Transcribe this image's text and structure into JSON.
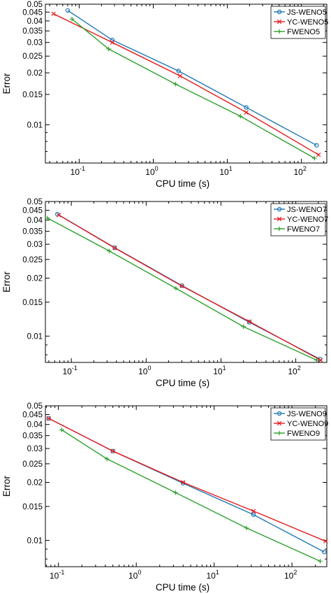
{
  "chart_data": [
    {
      "type": "line",
      "scale": "log-log",
      "xlabel": "CPU time (s)",
      "ylabel": "Error",
      "xlim": [
        0.035,
        220
      ],
      "ylim": [
        0.006,
        0.05
      ],
      "grid": false,
      "legend_position": "top-right",
      "x_ticks": [
        {
          "label": "10",
          "sup": "-1"
        },
        {
          "label": "10",
          "sup": "0"
        },
        {
          "label": "10",
          "sup": "1"
        },
        {
          "label": "10",
          "sup": "2"
        }
      ],
      "y_ticks": [
        "0.05",
        "0.045",
        "0.04",
        "0.035",
        "0.03",
        "0.025",
        "0.02",
        "0.015",
        "0.01"
      ],
      "series": [
        {
          "name": "JS-WENO5",
          "color": "#1f77b4",
          "marker": "circle",
          "x": [
            0.07,
            0.28,
            2.2,
            18,
            160
          ],
          "y": [
            0.046,
            0.031,
            0.0205,
            0.0126,
            0.0076
          ]
        },
        {
          "name": "YC-WENO5",
          "color": "#e41a1c",
          "marker": "x",
          "x": [
            0.045,
            0.28,
            2.3,
            18,
            170
          ],
          "y": [
            0.044,
            0.03,
            0.0192,
            0.0118,
            0.0067
          ]
        },
        {
          "name": "FWENO5",
          "color": "#2ca02c",
          "marker": "plus",
          "x": [
            0.08,
            0.25,
            2.0,
            15,
            150
          ],
          "y": [
            0.041,
            0.0275,
            0.0172,
            0.0112,
            0.0064
          ]
        }
      ]
    },
    {
      "type": "line",
      "scale": "log-log",
      "xlabel": "CPU time (s)",
      "ylabel": "Error",
      "xlim": [
        0.045,
        260
      ],
      "ylim": [
        0.0073,
        0.05
      ],
      "grid": false,
      "legend_position": "top-right",
      "x_ticks": [
        {
          "label": "10",
          "sup": "-1"
        },
        {
          "label": "10",
          "sup": "0"
        },
        {
          "label": "10",
          "sup": "1"
        },
        {
          "label": "10",
          "sup": "2"
        }
      ],
      "y_ticks": [
        "0.05",
        "0.045",
        "0.04",
        "0.035",
        "0.03",
        "0.025",
        "0.02",
        "0.015",
        "0.01"
      ],
      "series": [
        {
          "name": "JS-WENO7",
          "color": "#1f77b4",
          "marker": "circle",
          "x": [
            0.065,
            0.38,
            3.0,
            24,
            210
          ],
          "y": [
            0.043,
            0.0288,
            0.0183,
            0.0118,
            0.0076
          ]
        },
        {
          "name": "YC-WENO7",
          "color": "#e41a1c",
          "marker": "x",
          "x": [
            0.068,
            0.38,
            3.0,
            24,
            215
          ],
          "y": [
            0.0425,
            0.0287,
            0.0182,
            0.0119,
            0.0075
          ]
        },
        {
          "name": "FWENO7",
          "color": "#2ca02c",
          "marker": "plus",
          "x": [
            0.048,
            0.32,
            2.5,
            20,
            190
          ],
          "y": [
            0.041,
            0.0277,
            0.0177,
            0.0112,
            0.0075
          ]
        }
      ]
    },
    {
      "type": "line",
      "scale": "log-log",
      "xlabel": "CPU time (s)",
      "ylabel": "Error",
      "xlim": [
        0.068,
        280
      ],
      "ylim": [
        0.0073,
        0.05
      ],
      "grid": false,
      "legend_position": "top-right",
      "x_ticks": [
        {
          "label": "10",
          "sup": "-1"
        },
        {
          "label": "10",
          "sup": "0"
        },
        {
          "label": "10",
          "sup": "1"
        },
        {
          "label": "10",
          "sup": "2"
        }
      ],
      "y_ticks": [
        "0.05",
        "0.045",
        "0.04",
        "0.035",
        "0.03",
        "0.025",
        "0.02",
        "0.015",
        "0.01"
      ],
      "series": [
        {
          "name": "JS-WENO9",
          "color": "#1f77b4",
          "marker": "circle",
          "x": [
            0.075,
            0.5,
            4.0,
            32,
            260
          ],
          "y": [
            0.043,
            0.0291,
            0.0198,
            0.0136,
            0.0087
          ]
        },
        {
          "name": "YC-WENO9",
          "color": "#e41a1c",
          "marker": "x",
          "x": [
            0.075,
            0.5,
            4.0,
            32,
            270
          ],
          "y": [
            0.043,
            0.0291,
            0.02,
            0.0142,
            0.0099
          ]
        },
        {
          "name": "FWENO9",
          "color": "#2ca02c",
          "marker": "plus",
          "x": [
            0.11,
            0.42,
            3.2,
            26,
            230
          ],
          "y": [
            0.0375,
            0.0265,
            0.0177,
            0.0116,
            0.0078
          ]
        }
      ]
    }
  ]
}
